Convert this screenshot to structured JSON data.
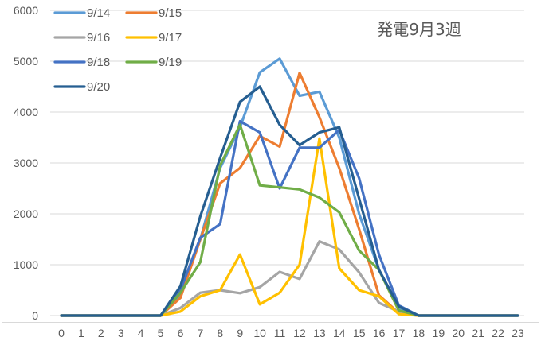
{
  "chart_data": {
    "type": "line",
    "title": "発電9月3週",
    "xlabel": "",
    "ylabel": "",
    "x": [
      0,
      1,
      2,
      3,
      4,
      5,
      6,
      7,
      8,
      9,
      10,
      11,
      12,
      13,
      14,
      15,
      16,
      17,
      18,
      19,
      20,
      21,
      22,
      23
    ],
    "x_tick_labels": [
      "0",
      "1",
      "2",
      "3",
      "4",
      "5",
      "6",
      "7",
      "8",
      "9",
      "10",
      "11",
      "12",
      "13",
      "14",
      "15",
      "16",
      "17",
      "18",
      "19",
      "20",
      "21",
      "22",
      "23"
    ],
    "y_tick_labels": [
      "0",
      "1000",
      "2000",
      "3000",
      "4000",
      "5000",
      "6000"
    ],
    "ylim": [
      0,
      6000
    ],
    "grid": true,
    "legend_position": "top-left",
    "series": [
      {
        "name": "9/14",
        "color": "#5b9bd5",
        "values": [
          0,
          0,
          0,
          0,
          0,
          0,
          400,
          1500,
          2900,
          3700,
          4780,
          5050,
          4320,
          4400,
          3500,
          2000,
          900,
          150,
          0,
          0,
          0,
          0,
          0,
          0
        ]
      },
      {
        "name": "9/15",
        "color": "#ed7d31",
        "values": [
          0,
          0,
          0,
          0,
          0,
          0,
          350,
          1500,
          2600,
          2900,
          3530,
          3320,
          4770,
          3900,
          2900,
          1700,
          400,
          50,
          0,
          0,
          0,
          0,
          0,
          0
        ]
      },
      {
        "name": "9/16",
        "color": "#a5a5a5",
        "values": [
          0,
          0,
          0,
          0,
          0,
          0,
          150,
          450,
          500,
          440,
          560,
          860,
          720,
          1460,
          1300,
          850,
          250,
          80,
          0,
          0,
          0,
          0,
          0,
          0
        ]
      },
      {
        "name": "9/17",
        "color": "#ffc000",
        "values": [
          0,
          0,
          0,
          0,
          0,
          0,
          80,
          380,
          500,
          1200,
          220,
          450,
          1000,
          3480,
          930,
          500,
          380,
          30,
          0,
          0,
          0,
          0,
          0,
          0
        ]
      },
      {
        "name": "9/18",
        "color": "#4472c4",
        "values": [
          0,
          0,
          0,
          0,
          0,
          0,
          500,
          1530,
          1800,
          3820,
          3600,
          2500,
          3300,
          3300,
          3650,
          2700,
          1200,
          200,
          0,
          0,
          0,
          0,
          0,
          0
        ]
      },
      {
        "name": "9/19",
        "color": "#70ad47",
        "values": [
          0,
          0,
          0,
          0,
          0,
          0,
          450,
          1050,
          2950,
          3750,
          2560,
          2520,
          2480,
          2320,
          2030,
          1280,
          900,
          100,
          0,
          0,
          0,
          0,
          0,
          0
        ]
      },
      {
        "name": "9/20",
        "color": "#255e91",
        "values": [
          0,
          0,
          0,
          0,
          0,
          0,
          580,
          1950,
          3100,
          4200,
          4500,
          3750,
          3350,
          3600,
          3700,
          2300,
          900,
          180,
          0,
          0,
          0,
          0,
          0,
          0
        ]
      }
    ]
  }
}
